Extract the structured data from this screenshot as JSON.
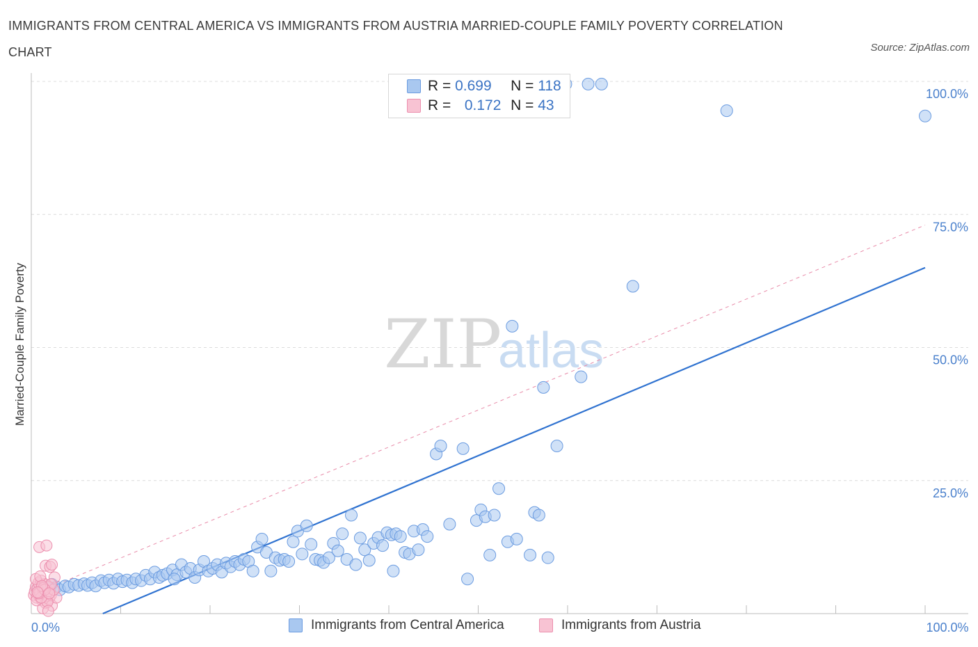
{
  "header": {
    "title": "IMMIGRANTS FROM CENTRAL AMERICA VS IMMIGRANTS FROM AUSTRIA MARRIED-COUPLE FAMILY POVERTY CORRELATION CHART",
    "source": "Source: ZipAtlas.com"
  },
  "legend": {
    "r_label": "R =",
    "n_label": "N =",
    "rows": [
      {
        "r": "0.699",
        "n": "118",
        "color": "#a9c8f0",
        "border": "#6a9be0"
      },
      {
        "r": "0.172",
        "n": "43",
        "color": "#f8c3d3",
        "border": "#ec8fae"
      }
    ]
  },
  "watermark": {
    "zip": "ZIP",
    "atlas": "atlas"
  },
  "chart_data": {
    "type": "scatter",
    "title": "IMMIGRANTS FROM CENTRAL AMERICA VS IMMIGRANTS FROM AUSTRIA MARRIED-COUPLE FAMILY POVERTY CORRELATION CHART",
    "xlabel": "",
    "ylabel": "Married-Couple Family Poverty",
    "xlim": [
      0,
      100
    ],
    "ylim": [
      0,
      100
    ],
    "x_tick_labels": [
      {
        "value": 0,
        "label": "0.0%"
      },
      {
        "value": 100,
        "label": "100.0%"
      }
    ],
    "y_tick_labels": [
      {
        "value": 25,
        "label": "25.0%"
      },
      {
        "value": 50,
        "label": "50.0%"
      },
      {
        "value": 75,
        "label": "75.0%"
      },
      {
        "value": 100,
        "label": "100.0%"
      }
    ],
    "grid": true,
    "series": [
      {
        "name": "Immigrants from Central America",
        "color": "#a9c8f0",
        "edge": "#6a9be0",
        "R": 0.699,
        "N": 118,
        "trend": {
          "x0": 8,
          "y0": 0,
          "x1": 100,
          "y1": 65,
          "color": "#2f72d0",
          "style": "solid"
        },
        "points": [
          [
            0.8,
            4.5
          ],
          [
            1.2,
            5.0
          ],
          [
            1.5,
            4.0
          ],
          [
            2.0,
            4.8
          ],
          [
            2.3,
            5.5
          ],
          [
            2.8,
            5.0
          ],
          [
            3.2,
            4.5
          ],
          [
            3.8,
            5.2
          ],
          [
            4.2,
            5.0
          ],
          [
            4.8,
            5.5
          ],
          [
            5.3,
            5.3
          ],
          [
            5.9,
            5.6
          ],
          [
            6.3,
            5.3
          ],
          [
            6.8,
            5.8
          ],
          [
            7.2,
            5.2
          ],
          [
            7.8,
            6.2
          ],
          [
            8.2,
            5.8
          ],
          [
            8.7,
            6.3
          ],
          [
            9.2,
            5.7
          ],
          [
            9.7,
            6.5
          ],
          [
            10.2,
            6.0
          ],
          [
            10.7,
            6.3
          ],
          [
            11.3,
            5.8
          ],
          [
            11.7,
            6.5
          ],
          [
            12.3,
            6.2
          ],
          [
            12.8,
            7.2
          ],
          [
            13.3,
            6.5
          ],
          [
            13.8,
            7.8
          ],
          [
            14.3,
            6.8
          ],
          [
            14.7,
            7.2
          ],
          [
            15.2,
            7.5
          ],
          [
            15.8,
            8.2
          ],
          [
            16.3,
            7.3
          ],
          [
            16.8,
            9.2
          ],
          [
            17.3,
            7.8
          ],
          [
            17.8,
            8.5
          ],
          [
            18.3,
            6.8
          ],
          [
            18.8,
            8.2
          ],
          [
            19.3,
            9.8
          ],
          [
            19.8,
            8.0
          ],
          [
            20.3,
            8.5
          ],
          [
            20.8,
            9.2
          ],
          [
            21.3,
            7.8
          ],
          [
            21.8,
            9.5
          ],
          [
            22.3,
            8.8
          ],
          [
            22.8,
            9.8
          ],
          [
            23.3,
            9.2
          ],
          [
            23.8,
            10.2
          ],
          [
            24.3,
            9.8
          ],
          [
            25.3,
            12.5
          ],
          [
            25.8,
            14.0
          ],
          [
            26.3,
            11.5
          ],
          [
            26.8,
            8.0
          ],
          [
            27.3,
            10.5
          ],
          [
            27.8,
            10.0
          ],
          [
            28.3,
            10.2
          ],
          [
            28.8,
            9.8
          ],
          [
            29.3,
            13.5
          ],
          [
            29.8,
            15.5
          ],
          [
            30.3,
            11.2
          ],
          [
            30.8,
            16.5
          ],
          [
            31.3,
            13.0
          ],
          [
            31.8,
            10.2
          ],
          [
            32.3,
            10.0
          ],
          [
            32.7,
            9.6
          ],
          [
            33.3,
            10.5
          ],
          [
            33.8,
            13.2
          ],
          [
            34.3,
            11.8
          ],
          [
            34.8,
            15.0
          ],
          [
            35.3,
            10.2
          ],
          [
            35.8,
            18.5
          ],
          [
            36.3,
            9.2
          ],
          [
            36.8,
            14.2
          ],
          [
            37.3,
            12.0
          ],
          [
            37.8,
            10.0
          ],
          [
            38.3,
            13.2
          ],
          [
            38.8,
            14.3
          ],
          [
            39.3,
            12.8
          ],
          [
            39.8,
            15.2
          ],
          [
            40.3,
            14.8
          ],
          [
            40.8,
            15.0
          ],
          [
            41.3,
            14.5
          ],
          [
            41.8,
            11.5
          ],
          [
            42.3,
            11.2
          ],
          [
            42.8,
            15.5
          ],
          [
            43.3,
            12.0
          ],
          [
            43.8,
            15.8
          ],
          [
            44.3,
            14.5
          ],
          [
            45.3,
            30.0
          ],
          [
            45.8,
            31.5
          ],
          [
            46.8,
            16.8
          ],
          [
            48.3,
            31.0
          ],
          [
            48.8,
            6.5
          ],
          [
            49.8,
            17.5
          ],
          [
            50.3,
            19.5
          ],
          [
            50.8,
            18.2
          ],
          [
            51.3,
            11.0
          ],
          [
            51.8,
            18.5
          ],
          [
            52.3,
            23.5
          ],
          [
            53.3,
            13.5
          ],
          [
            53.8,
            54.0
          ],
          [
            54.3,
            14.0
          ],
          [
            55.8,
            11.0
          ],
          [
            56.3,
            19.0
          ],
          [
            56.8,
            18.5
          ],
          [
            57.3,
            42.5
          ],
          [
            57.8,
            10.5
          ],
          [
            58.8,
            31.5
          ],
          [
            59.8,
            99.5
          ],
          [
            61.5,
            44.5
          ],
          [
            62.3,
            99.5
          ],
          [
            63.8,
            99.5
          ],
          [
            67.3,
            61.5
          ],
          [
            77.8,
            94.5
          ],
          [
            100,
            93.5
          ],
          [
            16.0,
            6.5
          ],
          [
            24.8,
            8.0
          ],
          [
            40.5,
            8.0
          ]
        ]
      },
      {
        "name": "Immigrants from Austria",
        "color": "#f8c3d3",
        "edge": "#ec8fae",
        "R": 0.172,
        "N": 43,
        "trend": {
          "x0": 0,
          "y0": 3.5,
          "x1": 100,
          "y1": 73,
          "color": "#e88aa8",
          "style": "dashed"
        },
        "points": [
          [
            0.3,
            3.5
          ],
          [
            0.4,
            4.2
          ],
          [
            0.5,
            5.0
          ],
          [
            0.6,
            3.0
          ],
          [
            0.7,
            4.8
          ],
          [
            0.8,
            5.8
          ],
          [
            0.9,
            3.2
          ],
          [
            1.0,
            4.0
          ],
          [
            1.1,
            6.2
          ],
          [
            1.2,
            2.5
          ],
          [
            1.3,
            4.5
          ],
          [
            1.4,
            3.8
          ],
          [
            1.5,
            5.5
          ],
          [
            1.6,
            2.0
          ],
          [
            1.7,
            4.2
          ],
          [
            1.8,
            3.3
          ],
          [
            1.9,
            5.0
          ],
          [
            2.0,
            2.8
          ],
          [
            2.1,
            4.0
          ],
          [
            2.2,
            3.5
          ],
          [
            2.3,
            1.5
          ],
          [
            0.9,
            12.5
          ],
          [
            1.6,
            9.0
          ],
          [
            1.7,
            12.8
          ],
          [
            2.1,
            8.8
          ],
          [
            2.3,
            9.2
          ],
          [
            2.6,
            6.8
          ],
          [
            2.8,
            3.0
          ],
          [
            0.5,
            6.5
          ],
          [
            1.0,
            7.0
          ],
          [
            1.3,
            1.0
          ],
          [
            1.8,
            2.2
          ],
          [
            2.5,
            4.5
          ],
          [
            0.6,
            2.5
          ],
          [
            1.1,
            3.0
          ],
          [
            1.4,
            4.8
          ],
          [
            1.9,
            0.5
          ],
          [
            2.2,
            5.5
          ],
          [
            0.8,
            3.8
          ],
          [
            1.5,
            4.5
          ],
          [
            1.2,
            5.2
          ],
          [
            2.0,
            3.8
          ],
          [
            0.7,
            4.0
          ]
        ]
      }
    ]
  },
  "bottom_legend": [
    {
      "label": "Immigrants from Central America",
      "color": "#a9c8f0",
      "border": "#6a9be0"
    },
    {
      "label": "Immigrants from Austria",
      "color": "#f8c3d3",
      "border": "#ec8fae"
    }
  ]
}
